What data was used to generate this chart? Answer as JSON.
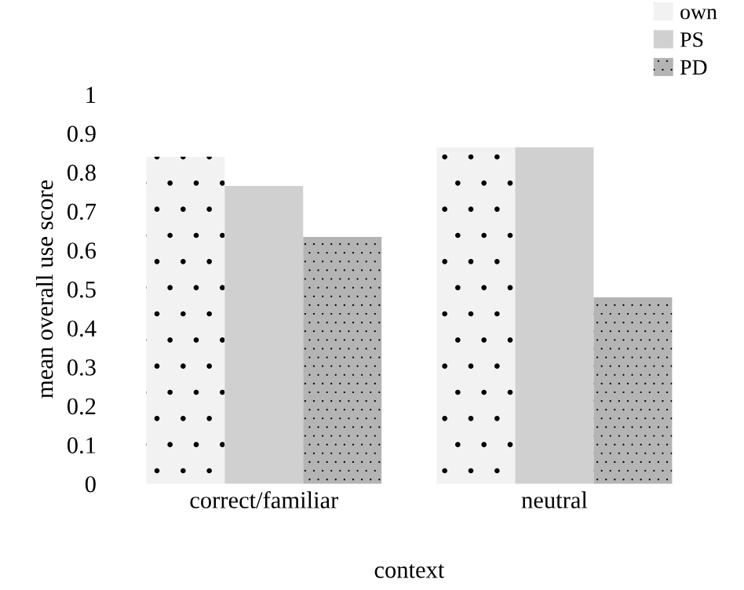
{
  "chart_data": {
    "type": "bar",
    "xlabel": "context",
    "ylabel": "mean overall use score",
    "categories": [
      "correct/familiar",
      "neutral"
    ],
    "series": [
      {
        "name": "own",
        "color": "#f2f2f2",
        "values": [
          0.84,
          0.864
        ]
      },
      {
        "name": "PS",
        "color": "#d0d0d0",
        "values": [
          0.765,
          0.864
        ]
      },
      {
        "name": "PD",
        "color": "#b4b4b4",
        "values": [
          0.634,
          0.479
        ]
      }
    ],
    "ylim": [
      0,
      1
    ],
    "yticks": [
      0,
      0.1,
      0.2,
      0.3,
      0.4,
      0.5,
      0.6,
      0.7,
      0.8,
      0.9,
      1
    ],
    "grid": false,
    "legend": "top right"
  }
}
